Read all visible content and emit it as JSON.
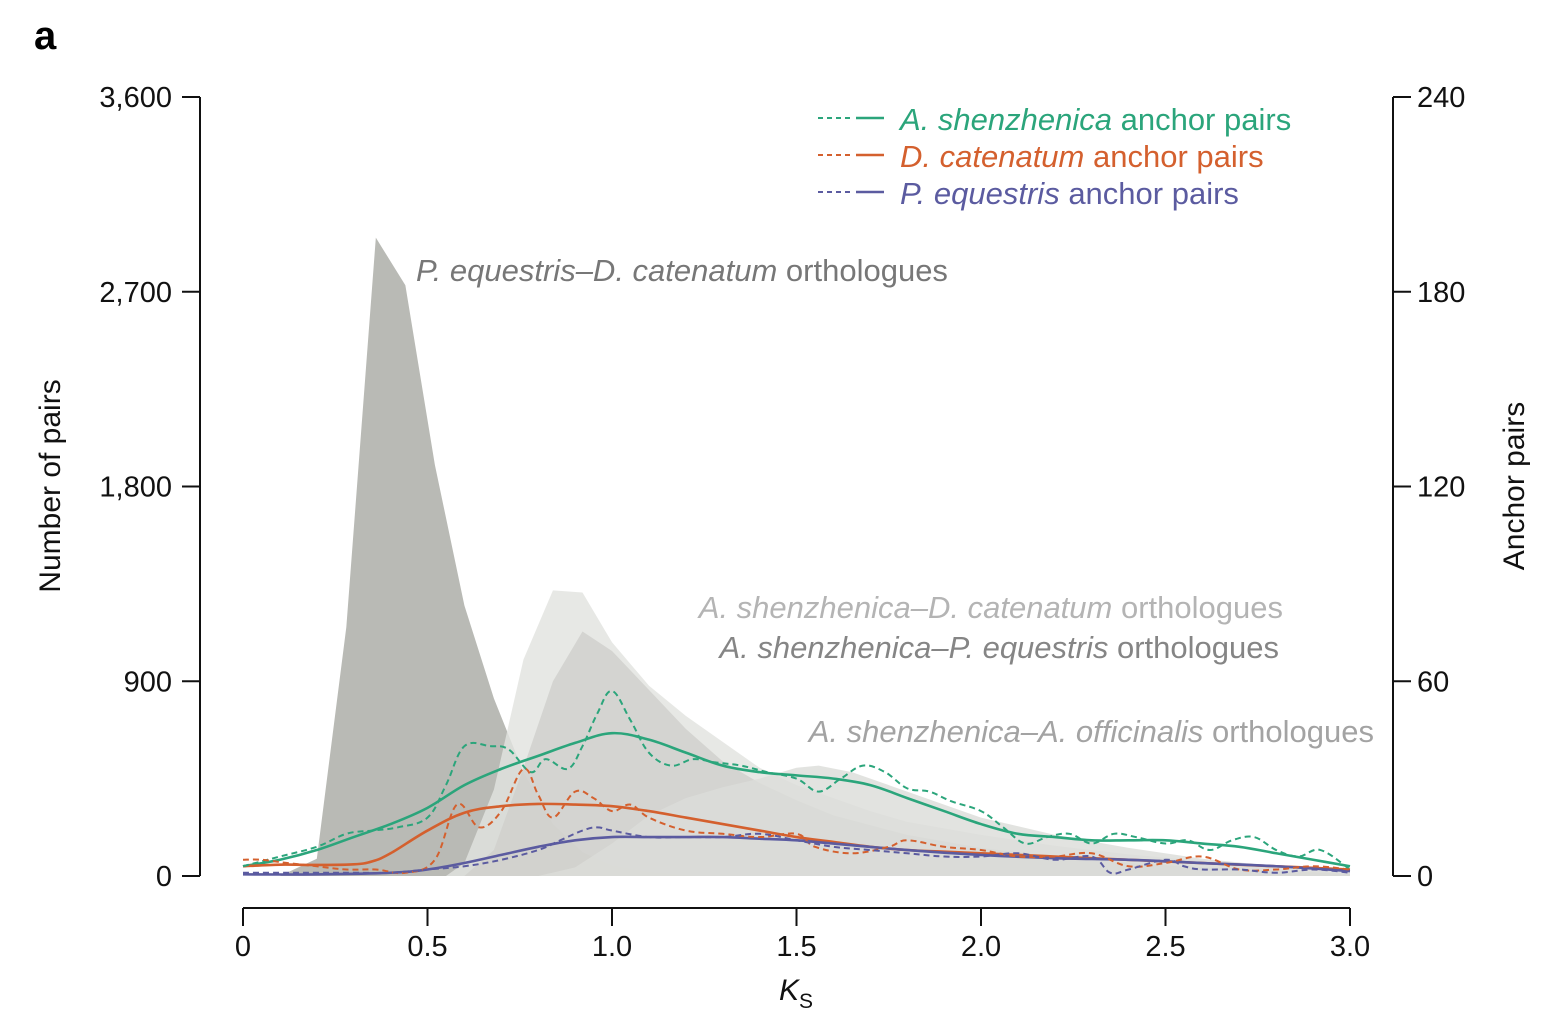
{
  "panel_label": "a",
  "chart_data": {
    "type": "area",
    "xlabel": "K",
    "xlabel_sub": "S",
    "ylabel_left": "Number of pairs",
    "ylabel_right": "Anchor pairs",
    "xlim": [
      0,
      3.0
    ],
    "ylim_left": [
      0,
      3600
    ],
    "ylim_right": [
      0,
      240
    ],
    "x_ticks": [
      "0",
      "0.5",
      "1.0",
      "1.5",
      "2.0",
      "2.5",
      "3.0"
    ],
    "x_tick_values": [
      0,
      0.5,
      1.0,
      1.5,
      2.0,
      2.5,
      3.0
    ],
    "y_left_ticks": [
      "0",
      "900",
      "1,800",
      "2,700",
      "3,600"
    ],
    "y_left_tick_values": [
      0,
      900,
      1800,
      2700,
      3600
    ],
    "y_right_ticks": [
      "0",
      "60",
      "120",
      "180",
      "240"
    ],
    "y_right_tick_values": [
      0,
      60,
      120,
      180,
      240
    ],
    "legend_position": "top-right",
    "ortholog_areas": [
      {
        "id": "pe-dc",
        "label_italic": "P. equestris–D. catenatum",
        "label_plain": " orthologues",
        "color": "#b9bab5",
        "label_color": "#777777",
        "x": [
          0.0,
          0.1,
          0.2,
          0.28,
          0.36,
          0.44,
          0.52,
          0.6,
          0.68,
          0.76,
          0.84,
          0.92,
          1.0,
          1.1,
          1.2,
          1.3,
          3.0
        ],
        "y": [
          0,
          0,
          80,
          1150,
          2950,
          2730,
          1900,
          1250,
          820,
          480,
          240,
          110,
          50,
          20,
          5,
          0,
          0
        ]
      },
      {
        "id": "as-dc",
        "label_italic": "A. shenzhenica–D. catenatum",
        "label_plain": " orthologues",
        "color": "#e2e3df",
        "label_color": "#b4b4b4",
        "x": [
          0.0,
          0.55,
          0.6,
          0.68,
          0.76,
          0.84,
          0.92,
          1.0,
          1.1,
          1.2,
          1.3,
          1.4,
          1.5,
          1.6,
          1.7,
          1.8,
          2.0,
          2.2,
          2.4,
          2.6,
          2.8,
          3.0
        ],
        "y": [
          0,
          0,
          60,
          400,
          1000,
          1320,
          1310,
          1080,
          880,
          740,
          620,
          500,
          420,
          360,
          300,
          250,
          190,
          140,
          100,
          70,
          40,
          20
        ]
      },
      {
        "id": "as-pe",
        "label_italic": "A. shenzhenica–P. equestris",
        "label_plain": " orthologues",
        "color": "#cfd0cc",
        "label_color": "#858585",
        "x": [
          0.0,
          0.6,
          0.68,
          0.76,
          0.84,
          0.92,
          1.0,
          1.1,
          1.2,
          1.3,
          1.4,
          1.5,
          1.6,
          1.8,
          2.0,
          2.2,
          2.4,
          2.6,
          2.8,
          3.0
        ],
        "y": [
          0,
          0,
          120,
          500,
          900,
          1130,
          1040,
          860,
          680,
          530,
          430,
          350,
          280,
          190,
          130,
          90,
          60,
          40,
          25,
          10
        ]
      },
      {
        "id": "as-ao",
        "label_italic": "A. shenzhenica–A. officinalis",
        "label_plain": " orthologues",
        "color": "#dcddd9",
        "label_color": "#a3a3a3",
        "x": [
          0.0,
          0.8,
          0.9,
          1.0,
          1.1,
          1.2,
          1.3,
          1.4,
          1.5,
          1.56,
          1.65,
          1.8,
          2.0,
          2.2,
          2.4,
          2.6,
          2.8,
          3.0
        ],
        "y": [
          0,
          0,
          40,
          150,
          280,
          360,
          410,
          450,
          500,
          510,
          480,
          390,
          270,
          190,
          130,
          80,
          45,
          20
        ]
      }
    ],
    "anchor_series": [
      {
        "name_italic": "A. shenzhenica",
        "name_plain": " anchor pairs",
        "color": "#2ba57b",
        "raw_x": [
          0.0,
          0.1,
          0.2,
          0.28,
          0.35,
          0.42,
          0.5,
          0.55,
          0.6,
          0.67,
          0.72,
          0.78,
          0.82,
          0.88,
          0.92,
          0.96,
          1.0,
          1.05,
          1.1,
          1.16,
          1.22,
          1.28,
          1.35,
          1.42,
          1.5,
          1.56,
          1.62,
          1.68,
          1.74,
          1.8,
          1.86,
          1.92,
          2.0,
          2.06,
          2.12,
          2.18,
          2.24,
          2.3,
          2.36,
          2.42,
          2.5,
          2.56,
          2.62,
          2.68,
          2.74,
          2.8,
          2.86,
          2.92,
          3.0
        ],
        "raw_y": [
          3,
          6,
          9,
          13,
          14,
          15,
          18,
          28,
          40,
          40,
          39,
          32,
          36,
          33,
          40,
          50,
          57,
          48,
          38,
          34,
          36,
          35,
          34,
          32,
          30,
          26,
          30,
          34,
          32,
          27,
          26,
          23,
          20,
          15,
          10,
          12,
          13,
          10,
          13,
          12,
          10,
          11,
          8,
          11,
          12,
          8,
          6,
          8,
          2
        ],
        "fit_x": [
          0.0,
          0.1,
          0.2,
          0.3,
          0.4,
          0.5,
          0.6,
          0.7,
          0.8,
          0.9,
          1.0,
          1.1,
          1.2,
          1.3,
          1.4,
          1.5,
          1.6,
          1.7,
          1.8,
          1.9,
          2.0,
          2.1,
          2.2,
          2.3,
          2.4,
          2.5,
          2.6,
          2.7,
          2.8,
          2.9,
          3.0
        ],
        "fit_y": [
          3,
          5,
          8,
          12,
          16,
          21,
          28,
          33,
          37,
          41,
          44,
          42,
          38,
          34,
          32,
          31,
          30,
          28,
          24,
          20,
          16,
          13,
          12,
          11,
          11,
          11,
          10,
          9,
          7,
          5,
          3
        ]
      },
      {
        "name_italic": "D. catenatum",
        "name_plain": " anchor pairs",
        "color": "#d4602e",
        "raw_x": [
          0.0,
          0.05,
          0.12,
          0.2,
          0.28,
          0.36,
          0.44,
          0.52,
          0.58,
          0.64,
          0.7,
          0.76,
          0.8,
          0.84,
          0.9,
          0.95,
          1.0,
          1.05,
          1.1,
          1.2,
          1.3,
          1.4,
          1.5,
          1.55,
          1.65,
          1.75,
          1.8,
          1.9,
          2.0,
          2.1,
          2.2,
          2.3,
          2.4,
          2.5,
          2.6,
          2.7,
          2.8,
          2.9,
          3.0
        ],
        "raw_y": [
          5,
          5,
          4,
          3,
          2,
          2,
          1,
          5,
          22,
          15,
          20,
          33,
          25,
          18,
          26,
          24,
          20,
          22,
          18,
          14,
          13,
          12,
          13,
          9,
          7,
          9,
          11,
          9,
          8,
          6,
          6,
          7,
          3,
          4,
          6,
          2,
          2,
          3,
          2
        ],
        "fit_x": [
          0.0,
          0.1,
          0.2,
          0.3,
          0.35,
          0.4,
          0.5,
          0.6,
          0.7,
          0.8,
          0.9,
          1.0,
          1.1,
          1.2,
          1.3,
          1.4,
          1.5,
          1.6,
          1.7,
          1.8,
          1.9,
          2.0,
          2.2,
          2.4,
          2.6,
          2.8,
          3.0
        ],
        "fit_y": [
          3,
          3.5,
          3.4,
          3.6,
          4.5,
          7,
          14,
          19.5,
          21.5,
          22.2,
          22,
          21.5,
          20,
          18,
          16,
          14,
          12,
          10.5,
          9,
          8,
          7.5,
          7,
          6,
          5,
          4,
          3,
          2
        ]
      },
      {
        "name_italic": "P. equestris",
        "name_plain": " anchor pairs",
        "color": "#5b5ba0",
        "raw_x": [
          0.0,
          0.1,
          0.2,
          0.3,
          0.4,
          0.5,
          0.6,
          0.7,
          0.8,
          0.86,
          0.92,
          0.96,
          1.0,
          1.1,
          1.2,
          1.3,
          1.4,
          1.5,
          1.6,
          1.7,
          1.8,
          1.9,
          2.0,
          2.1,
          2.2,
          2.3,
          2.35,
          2.4,
          2.5,
          2.55,
          2.6,
          2.7,
          2.8,
          2.9,
          3.0
        ],
        "raw_y": [
          1,
          1,
          1,
          1,
          1,
          2,
          3,
          5,
          8,
          11,
          14,
          15,
          14,
          12,
          12,
          12,
          13,
          11,
          9,
          8,
          7,
          6,
          6,
          7,
          5,
          6,
          1,
          2,
          5,
          3,
          2,
          2,
          1,
          2,
          1
        ],
        "fit_x": [
          0.0,
          0.2,
          0.4,
          0.5,
          0.6,
          0.7,
          0.8,
          0.9,
          1.0,
          1.1,
          1.2,
          1.3,
          1.4,
          1.5,
          1.6,
          1.8,
          2.0,
          2.2,
          2.4,
          2.6,
          2.8,
          3.0
        ],
        "fit_y": [
          0.5,
          0.5,
          1,
          2,
          4,
          6.5,
          9,
          11,
          12,
          12,
          12,
          12,
          11.5,
          11,
          10,
          8,
          6.5,
          5.5,
          5,
          4,
          3,
          1.5
        ]
      }
    ]
  }
}
